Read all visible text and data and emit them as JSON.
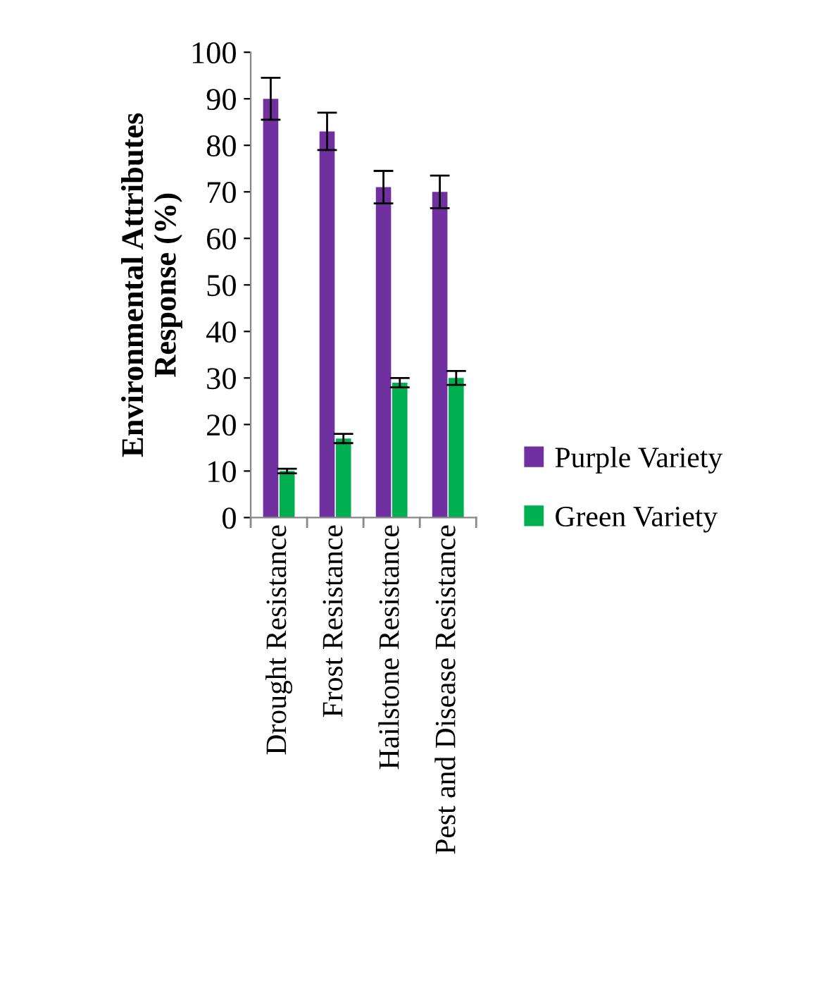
{
  "chart_data": {
    "type": "bar",
    "ylabel": "Environmental Attributes\nResponse (%)",
    "categories": [
      "Drought Resistance",
      "Frost Resistance",
      "Hailstone Resistance",
      "Pest and Disease Resistance"
    ],
    "series": [
      {
        "name": "Purple Variety",
        "color": "#7030a0",
        "values": [
          90,
          83,
          71,
          70
        ],
        "errors": [
          4.5,
          4,
          3.5,
          3.5
        ]
      },
      {
        "name": "Green Variety",
        "color": "#00b050",
        "values": [
          10,
          17,
          29,
          30
        ],
        "errors": [
          0.5,
          1,
          1,
          1.5
        ]
      }
    ],
    "ylim": [
      0,
      100
    ],
    "yticks": [
      0,
      10,
      20,
      30,
      40,
      50,
      60,
      70,
      80,
      90,
      100
    ],
    "grid": false,
    "legend": "right"
  }
}
